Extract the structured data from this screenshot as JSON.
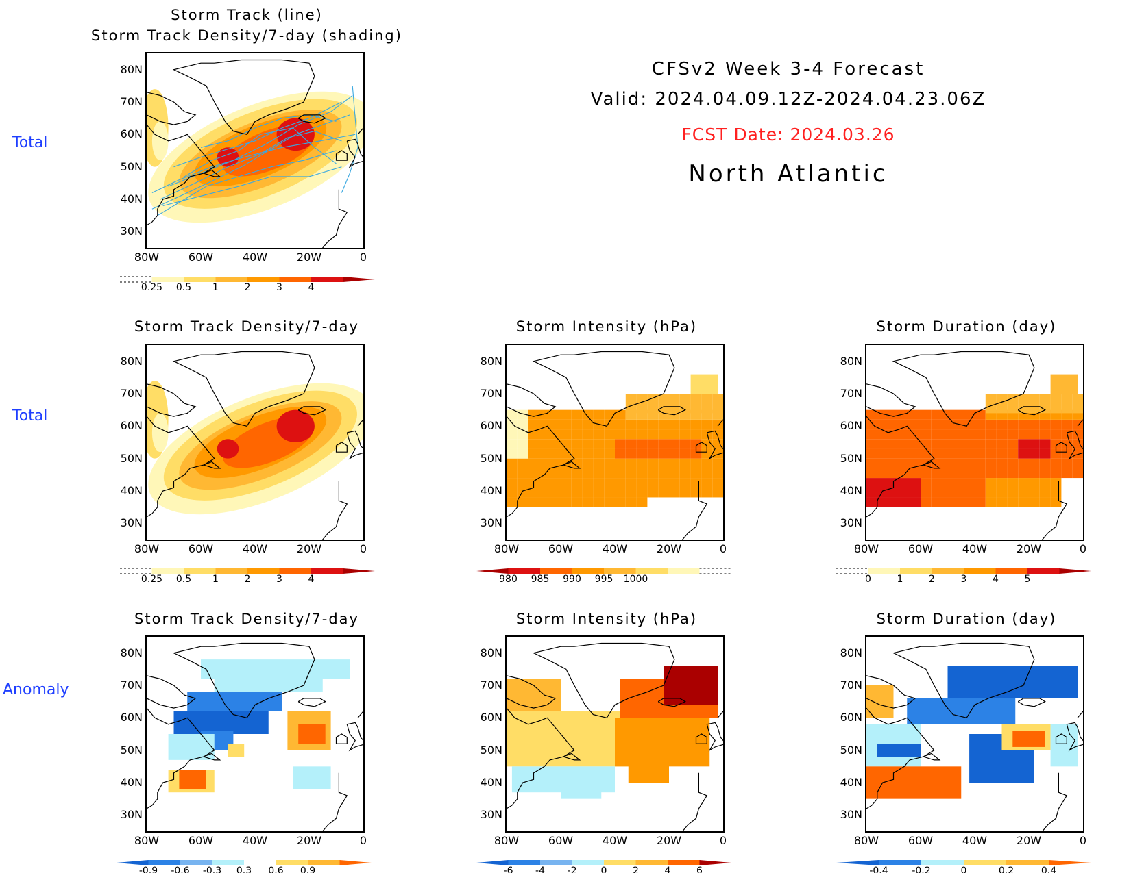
{
  "header": {
    "line1": "CFSv2 Week 3-4 Forecast",
    "line2": "Valid: 2024.04.09.12Z-2024.04.23.06Z",
    "fcst_date": "FCST Date: 2024.03.26",
    "region": "North Atlantic"
  },
  "row_labels": [
    "Total",
    "Total",
    "Anomaly"
  ],
  "axes": {
    "lat_labels": [
      "80N",
      "70N",
      "60N",
      "50N",
      "40N",
      "30N"
    ],
    "lon_labels": [
      "80W",
      "60W",
      "40W",
      "20W",
      "0"
    ]
  },
  "panels": {
    "top": {
      "title1": "Storm Track (line)",
      "title2": "Storm Track Density/7-day (shading)",
      "colorbar": [
        "0.25",
        "0.5",
        "1",
        "2",
        "3",
        "4"
      ]
    },
    "total_density": {
      "title": "Storm Track Density/7-day",
      "colorbar": [
        "0.25",
        "0.5",
        "1",
        "2",
        "3",
        "4"
      ]
    },
    "total_intensity": {
      "title": "Storm Intensity (hPa)",
      "colorbar": [
        "980",
        "985",
        "990",
        "995",
        "1000"
      ]
    },
    "total_duration": {
      "title": "Storm Duration (day)",
      "colorbar": [
        "0",
        "1",
        "2",
        "3",
        "4",
        "5"
      ]
    },
    "anom_density": {
      "title": "Storm Track Density/7-day",
      "colorbar": [
        "-0.9",
        "-0.6",
        "-0.3",
        "0.3",
        "0.6",
        "0.9"
      ]
    },
    "anom_intensity": {
      "title": "Storm Intensity (hPa)",
      "colorbar": [
        "-6",
        "-4",
        "-2",
        "0",
        "2",
        "4",
        "6"
      ]
    },
    "anom_duration": {
      "title": "Storm Duration (day)",
      "colorbar": [
        "-0.4",
        "-0.2",
        "0",
        "0.2",
        "0.4"
      ]
    }
  },
  "colors": {
    "warm": [
      "#fff7b8",
      "#ffdd66",
      "#ffb833",
      "#ff9900",
      "#ff6600",
      "#dd1111",
      "#aa0000"
    ],
    "cool": [
      "#1464d2",
      "#2c82e6",
      "#78b4f0",
      "#b4f0fa"
    ],
    "track_line": "#3aa8e0",
    "label_blue": "#1f3fff",
    "fcst_red": "#ff2020"
  }
}
